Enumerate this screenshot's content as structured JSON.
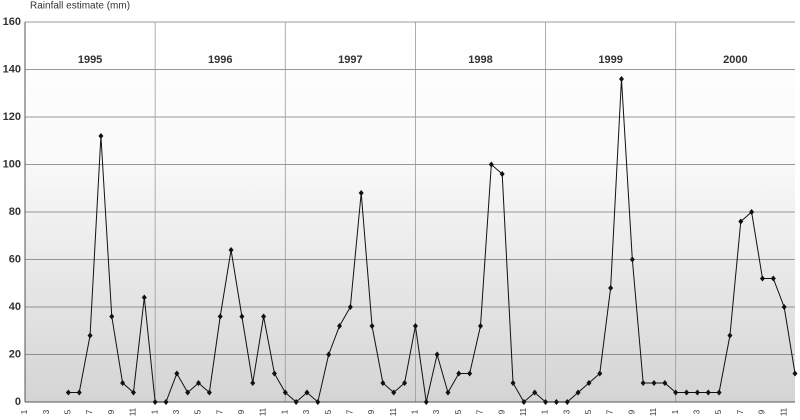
{
  "chart_data": {
    "type": "line",
    "y_label": "Rainfall estimate (mm)",
    "year_labels": [
      "1995",
      "1996",
      "1997",
      "1998",
      "1999",
      "2000"
    ],
    "categories": [
      "1",
      null,
      "3",
      null,
      "5",
      null,
      "7",
      null,
      "9",
      null,
      "11",
      null,
      "1",
      null,
      "3",
      null,
      "5",
      null,
      "7",
      null,
      "9",
      null,
      "11",
      null,
      "1",
      null,
      "3",
      null,
      "5",
      null,
      "7",
      null,
      "9",
      null,
      "11",
      null,
      "1",
      null,
      "3",
      null,
      "5",
      null,
      "7",
      null,
      "9",
      null,
      "11",
      null,
      "1",
      null,
      "3",
      null,
      "5",
      null,
      "7",
      null,
      "9",
      null,
      "11",
      null,
      "1",
      null,
      "3",
      null,
      "5",
      null,
      "7",
      null,
      "9",
      null,
      "11",
      null
    ],
    "values": [
      null,
      null,
      null,
      null,
      4,
      4,
      28,
      112,
      36,
      8,
      4,
      44,
      0,
      0,
      12,
      4,
      8,
      4,
      36,
      64,
      36,
      8,
      36,
      12,
      4,
      0,
      4,
      0,
      20,
      32,
      40,
      88,
      32,
      8,
      4,
      8,
      32,
      0,
      20,
      4,
      12,
      12,
      32,
      100,
      96,
      8,
      0,
      4,
      0,
      0,
      0,
      4,
      8,
      12,
      48,
      136,
      60,
      8,
      8,
      8,
      4,
      4,
      4,
      4,
      4,
      28,
      76,
      80,
      52,
      52,
      40,
      12
    ],
    "color": "#111111",
    "ylim": [
      0,
      160
    ],
    "yticks": [
      0,
      20,
      40,
      60,
      80,
      100,
      120,
      140,
      160
    ],
    "grid": true
  }
}
